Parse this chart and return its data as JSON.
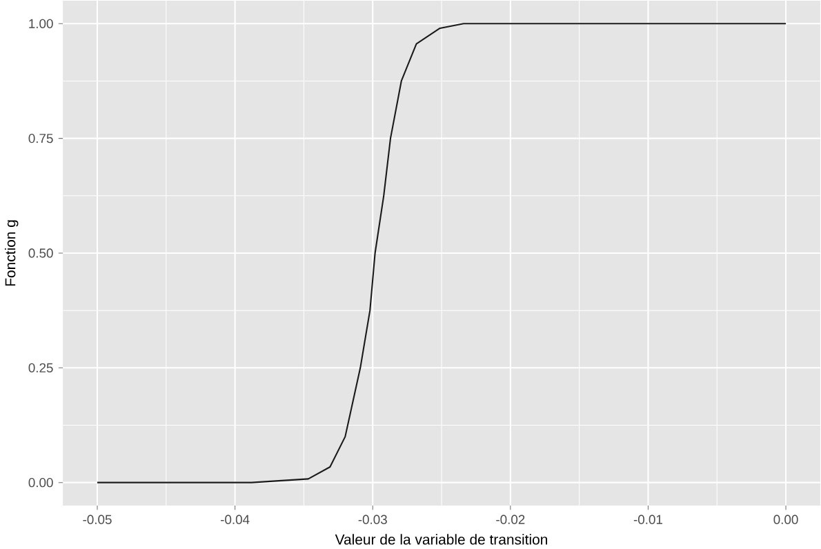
{
  "chart_data": {
    "type": "line",
    "xlabel": "Valeur de la variable de transition",
    "ylabel": "Fonction g",
    "x": [
      -0.05,
      -0.0388,
      -0.03468,
      -0.0331,
      -0.032,
      -0.0309,
      -0.0302,
      -0.02983,
      -0.0292,
      -0.02871,
      -0.02792,
      -0.02683,
      -0.02512,
      -0.0234,
      0.0
    ],
    "series": [
      {
        "color": "#1a1a1a",
        "values": [
          0,
          0,
          0.008,
          0.034,
          0.1,
          0.25,
          0.375,
          0.5,
          0.625,
          0.75,
          0.875,
          0.956,
          0.99,
          1,
          1
        ]
      }
    ],
    "xlim": [
      -0.0525,
      0.0025
    ],
    "ylim": [
      -0.05,
      1.05
    ],
    "xticks": [
      {
        "value": -0.05,
        "label": "-0.05"
      },
      {
        "value": -0.04,
        "label": "-0.04"
      },
      {
        "value": -0.03,
        "label": "-0.03"
      },
      {
        "value": -0.02,
        "label": "-0.02"
      },
      {
        "value": -0.01,
        "label": "-0.01"
      },
      {
        "value": 0,
        "label": "0.00"
      }
    ],
    "yticks": [
      {
        "value": 0,
        "label": "0.00"
      },
      {
        "value": 0.25,
        "label": "0.25"
      },
      {
        "value": 0.5,
        "label": "0.50"
      },
      {
        "value": 0.75,
        "label": "0.75"
      },
      {
        "value": 1,
        "label": "1.00"
      }
    ],
    "grid": true,
    "marker": "none",
    "line_style": "solid"
  }
}
